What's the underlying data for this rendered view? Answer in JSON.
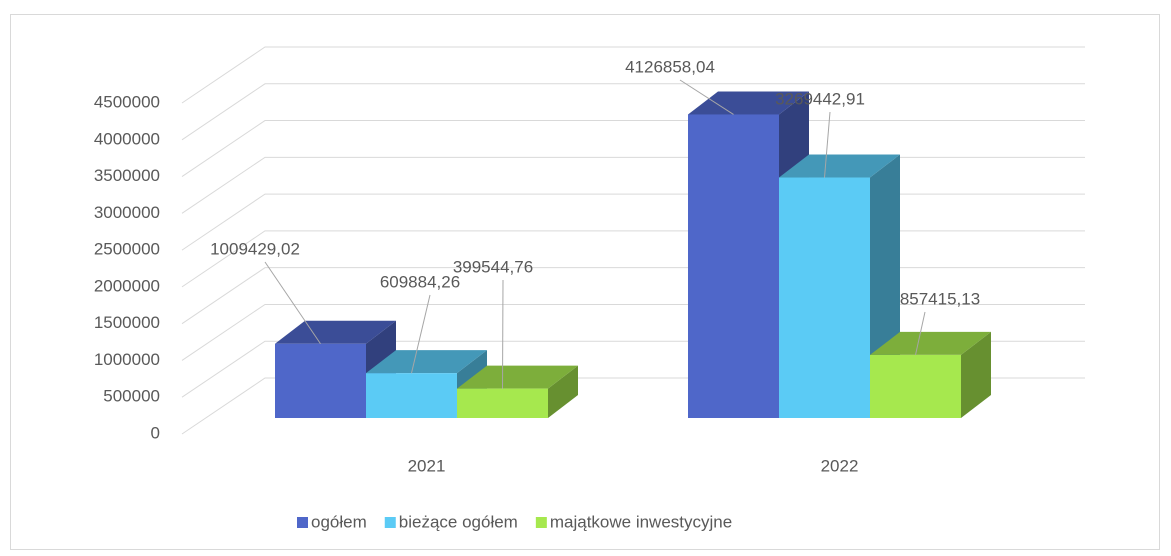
{
  "chart_data": {
    "type": "bar3d",
    "categories": [
      "2021",
      "2022"
    ],
    "series": [
      {
        "name": "ogółem",
        "color": "#4f67c9",
        "values": [
          1009429.02,
          4126858.04
        ],
        "value_labels": [
          "1009429,02",
          "4126858,04"
        ]
      },
      {
        "name": "bieżące ogółem",
        "color": "#5bcbf5",
        "values": [
          609884.26,
          3269442.91
        ],
        "value_labels": [
          "609884,26",
          "3269442,91"
        ]
      },
      {
        "name": "majątkowe inwestycyjne",
        "color": "#a6e84e",
        "values": [
          399544.76,
          857415.13
        ],
        "value_labels": [
          "399544,76",
          "857415,13"
        ]
      }
    ],
    "ylim": [
      0,
      4500000
    ],
    "yticks": [
      0,
      500000,
      1000000,
      1500000,
      2000000,
      2500000,
      3000000,
      3500000,
      4000000,
      4500000
    ],
    "grid": true,
    "legend": "bottom"
  }
}
